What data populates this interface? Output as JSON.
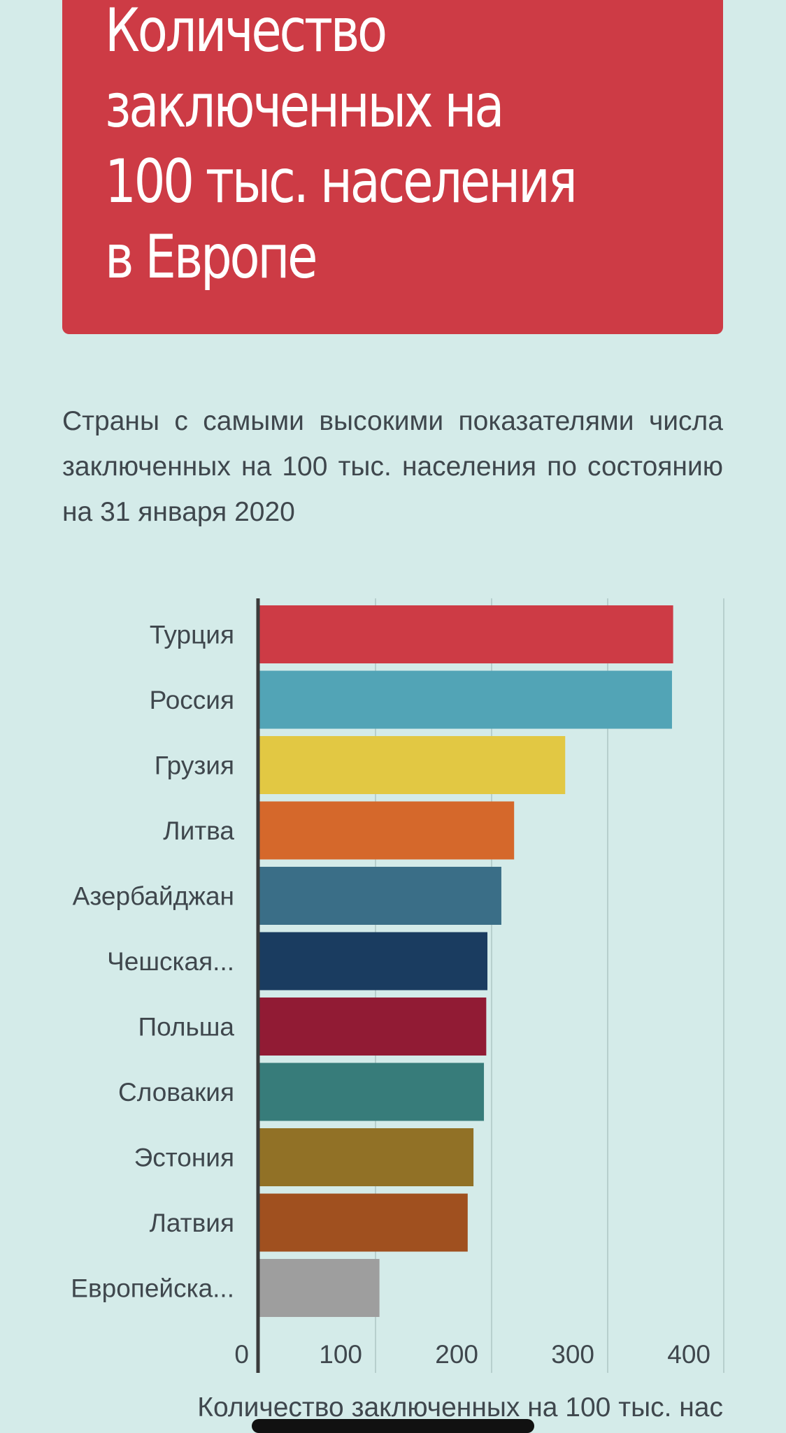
{
  "title": "Количество заключенных на 100 тыс. населения в Европе",
  "subtitle": "Страны с самыми высокими показателями числа заключенных на 100 тыс. населения по состоянию на 31 января 2020",
  "chart_data": {
    "type": "bar",
    "orientation": "horizontal",
    "categories": [
      "Турция",
      "Россия",
      "Грузия",
      "Литва",
      "Азербайджан",
      "Чешская...",
      "Польша",
      "Словакия",
      "Эстония",
      "Латвия",
      "Европейска..."
    ],
    "values": [
      357,
      356,
      264,
      220,
      209,
      197,
      196,
      194,
      185,
      180,
      104
    ],
    "colors": [
      "#cd3b45",
      "#52a4b6",
      "#e2c843",
      "#d5682b",
      "#3a6e87",
      "#1a3c60",
      "#911b34",
      "#377c7a",
      "#917126",
      "#a0501f",
      "#9e9e9e"
    ],
    "xticks": [
      "0",
      "100",
      "200",
      "300",
      "400"
    ],
    "xlim": [
      0,
      400
    ],
    "xlabel": "Количество заключенных на 100 тыс. нас",
    "ylabel": "",
    "grid": true
  }
}
